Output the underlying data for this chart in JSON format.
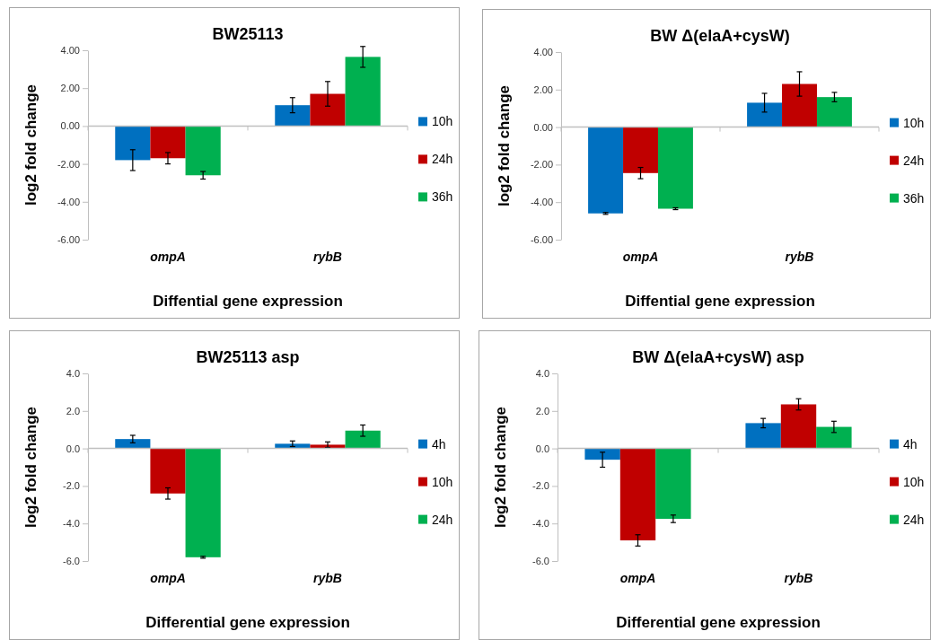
{
  "chart_data": [
    {
      "type": "bar",
      "title": "BW25113",
      "xlabel": "Diffential gene expression",
      "ylabel": "log2 fold change",
      "categories": [
        "ompA",
        "rybB"
      ],
      "legend": "right",
      "ylim": [
        -6,
        4
      ],
      "yticks": [
        {
          "value": -6,
          "label": "-6.00"
        },
        {
          "value": -4,
          "label": "-4.00"
        },
        {
          "value": -2,
          "label": "-2.00"
        },
        {
          "value": 0,
          "label": "0.00"
        },
        {
          "value": 2,
          "label": "2.00"
        },
        {
          "value": 4,
          "label": "4.00"
        }
      ],
      "series": [
        {
          "name": "10h",
          "color": "#0070c0",
          "values": [
            -1.8,
            1.1
          ],
          "errors": [
            0.55,
            0.4
          ]
        },
        {
          "name": "24h",
          "color": "#c00000",
          "values": [
            -1.7,
            1.7
          ],
          "errors": [
            0.3,
            0.65
          ]
        },
        {
          "name": "36h",
          "color": "#00b050",
          "values": [
            -2.6,
            3.65
          ],
          "errors": [
            0.2,
            0.55
          ]
        }
      ]
    },
    {
      "type": "bar",
      "title": "BW Δ(elaA+cysW)",
      "xlabel": "Diffential gene expression",
      "ylabel": "log2 fold change",
      "categories": [
        "ompA",
        "rybB"
      ],
      "legend": "right",
      "ylim": [
        -6,
        4
      ],
      "yticks": [
        {
          "value": -6,
          "label": "-6.00"
        },
        {
          "value": -4,
          "label": "-4.00"
        },
        {
          "value": -2,
          "label": "-2.00"
        },
        {
          "value": 0,
          "label": "0.00"
        },
        {
          "value": 2,
          "label": "2.00"
        },
        {
          "value": 4,
          "label": "4.00"
        }
      ],
      "series": [
        {
          "name": "10h",
          "color": "#0070c0",
          "values": [
            -4.6,
            1.3
          ],
          "errors": [
            0.05,
            0.5
          ]
        },
        {
          "name": "24h",
          "color": "#c00000",
          "values": [
            -2.45,
            2.3
          ],
          "errors": [
            0.3,
            0.65
          ]
        },
        {
          "name": "36h",
          "color": "#00b050",
          "values": [
            -4.35,
            1.6
          ],
          "errors": [
            0.05,
            0.25
          ]
        }
      ]
    },
    {
      "type": "bar",
      "title": "BW25113 asp",
      "xlabel": "Differential gene expression",
      "ylabel": "log2 fold change",
      "categories": [
        "ompA",
        "rybB"
      ],
      "legend": "right",
      "ylim": [
        -6,
        4
      ],
      "yticks": [
        {
          "value": -6,
          "label": "-6.0"
        },
        {
          "value": -4,
          "label": "-4.0"
        },
        {
          "value": -2,
          "label": "-2.0"
        },
        {
          "value": 0,
          "label": "0.0"
        },
        {
          "value": 2,
          "label": "2.0"
        },
        {
          "value": 4,
          "label": "4.0"
        }
      ],
      "series": [
        {
          "name": "4h",
          "color": "#0070c0",
          "values": [
            0.5,
            0.25
          ],
          "errors": [
            0.2,
            0.15
          ]
        },
        {
          "name": "10h",
          "color": "#c00000",
          "values": [
            -2.4,
            0.2
          ],
          "errors": [
            0.3,
            0.15
          ]
        },
        {
          "name": "24h",
          "color": "#00b050",
          "values": [
            -5.8,
            0.95
          ],
          "errors": [
            0.05,
            0.3
          ]
        }
      ]
    },
    {
      "type": "bar",
      "title": "BW Δ(elaA+cysW) asp",
      "xlabel": "Differential gene expression",
      "ylabel": "log2 fold change",
      "categories": [
        "ompA",
        "rybB"
      ],
      "legend": "right",
      "ylim": [
        -6,
        4
      ],
      "yticks": [
        {
          "value": -6,
          "label": "-6.0"
        },
        {
          "value": -4,
          "label": "-4.0"
        },
        {
          "value": -2,
          "label": "-2.0"
        },
        {
          "value": 0,
          "label": "0.0"
        },
        {
          "value": 2,
          "label": "2.0"
        },
        {
          "value": 4,
          "label": "4.0"
        }
      ],
      "series": [
        {
          "name": "4h",
          "color": "#0070c0",
          "values": [
            -0.6,
            1.35
          ],
          "errors": [
            0.4,
            0.25
          ]
        },
        {
          "name": "10h",
          "color": "#c00000",
          "values": [
            -4.9,
            2.35
          ],
          "errors": [
            0.3,
            0.3
          ]
        },
        {
          "name": "24h",
          "color": "#00b050",
          "values": [
            -3.75,
            1.15
          ],
          "errors": [
            0.2,
            0.3
          ]
        }
      ]
    }
  ]
}
